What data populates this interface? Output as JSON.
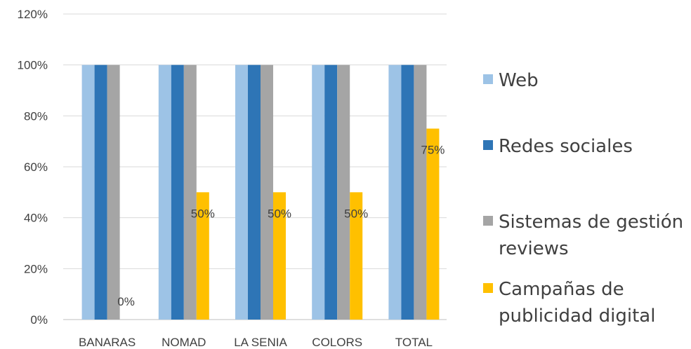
{
  "chart_data": {
    "type": "bar",
    "categories": [
      "BANARAS",
      "NOMAD",
      "LA SENIA",
      "COLORS",
      "TOTAL"
    ],
    "series": [
      {
        "name": "Web",
        "values": [
          1.0,
          1.0,
          1.0,
          1.0,
          1.0
        ],
        "color": "#9DC3E6"
      },
      {
        "name": "Redes sociales",
        "values": [
          1.0,
          1.0,
          1.0,
          1.0,
          1.0
        ],
        "color": "#2E75B6"
      },
      {
        "name": "Sistemas de gestión reviews",
        "values": [
          1.0,
          1.0,
          1.0,
          1.0,
          1.0
        ],
        "color": "#A5A5A5"
      },
      {
        "name": "Campañas de publicidad digital",
        "values": [
          0.0,
          0.5,
          0.5,
          0.5,
          0.75
        ],
        "color": "#FFC000",
        "data_labels": [
          "0%",
          "50%",
          "50%",
          "50%",
          "75%"
        ]
      }
    ],
    "yticks": [
      "0%",
      "20%",
      "40%",
      "60%",
      "80%",
      "100%",
      "120%"
    ],
    "ylim": [
      0,
      1.2
    ],
    "grid": true,
    "legend_position": "right"
  },
  "legend": {
    "web": "Web",
    "redes": "Redes sociales",
    "sistemas_line1": "Sistemas de gestión",
    "sistemas_line2": "reviews",
    "campanas_line1": "Campañas de",
    "campanas_line2": "publicidad digital"
  }
}
